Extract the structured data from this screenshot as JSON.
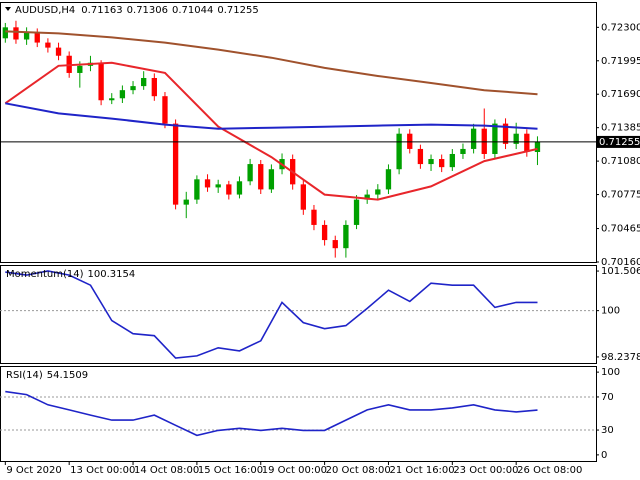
{
  "chart_data": [
    {
      "type": "candlestick",
      "title": "AUDUSD,H4",
      "open": [
        0.722,
        0.723,
        0.72189,
        0.72254,
        0.72161,
        0.72115,
        0.72041,
        0.71884,
        0.71949,
        0.71977,
        0.71635,
        0.71653,
        0.71727,
        0.71764,
        0.71838,
        0.71672,
        0.71422,
        0.70683,
        0.70729,
        0.70914,
        0.7084,
        0.70868,
        0.70775,
        0.70896,
        0.71053,
        0.70822,
        0.71006,
        0.71099,
        0.70868,
        0.70637,
        0.70498,
        0.7036,
        0.70286,
        0.70498,
        0.70729,
        0.70775,
        0.70822,
        0.71006,
        0.7133,
        0.71191,
        0.71053,
        0.71099,
        0.71025,
        0.71145,
        0.71191,
        0.71376,
        0.71145,
        0.71422,
        0.71237,
        0.7133,
        0.71163
      ],
      "high": [
        0.7234,
        0.7236,
        0.723,
        0.7229,
        0.722,
        0.7216,
        0.7208,
        0.7199,
        0.7204,
        0.72,
        0.717,
        0.7177,
        0.7181,
        0.719,
        0.7188,
        0.7171,
        0.7146,
        0.708,
        0.7095,
        0.7096,
        0.7091,
        0.709,
        0.7094,
        0.711,
        0.7109,
        0.7105,
        0.7115,
        0.7114,
        0.7091,
        0.7068,
        0.7054,
        0.704,
        0.7054,
        0.7077,
        0.7082,
        0.7087,
        0.7105,
        0.7138,
        0.7137,
        0.7123,
        0.7114,
        0.7114,
        0.7119,
        0.7124,
        0.7142,
        0.7156,
        0.7146,
        0.7147,
        0.7143,
        0.7137,
        0.71306
      ],
      "low": [
        0.7216,
        0.7215,
        0.7214,
        0.7212,
        0.7207,
        0.72,
        0.7184,
        0.7175,
        0.719,
        0.7159,
        0.716,
        0.7161,
        0.7169,
        0.7173,
        0.7163,
        0.7138,
        0.7064,
        0.7056,
        0.7069,
        0.708,
        0.7079,
        0.7073,
        0.7074,
        0.7086,
        0.7078,
        0.7079,
        0.7096,
        0.7082,
        0.7059,
        0.7045,
        0.7031,
        0.702,
        0.702,
        0.7046,
        0.7069,
        0.7073,
        0.7078,
        0.7096,
        0.7115,
        0.7101,
        0.7099,
        0.7098,
        0.7099,
        0.711,
        0.7115,
        0.711,
        0.711,
        0.7119,
        0.7119,
        0.7112,
        0.71044
      ],
      "close": [
        0.723,
        0.72189,
        0.72254,
        0.72161,
        0.72115,
        0.72041,
        0.71884,
        0.71949,
        0.71977,
        0.71635,
        0.71653,
        0.71727,
        0.71764,
        0.71838,
        0.71672,
        0.71422,
        0.70683,
        0.70729,
        0.70914,
        0.7084,
        0.70868,
        0.70775,
        0.70896,
        0.71053,
        0.70822,
        0.71006,
        0.71099,
        0.70868,
        0.70637,
        0.70498,
        0.7036,
        0.70286,
        0.70498,
        0.70729,
        0.70775,
        0.70822,
        0.71006,
        0.7133,
        0.71191,
        0.71053,
        0.71099,
        0.71025,
        0.71145,
        0.71191,
        0.71376,
        0.71145,
        0.71422,
        0.71237,
        0.7133,
        0.71163,
        0.71255
      ],
      "up_color": "#00a000",
      "down_color": "#ff0000",
      "series": [
        {
          "color": "#e8262b",
          "x": [
            0,
            5,
            10,
            15,
            20,
            25,
            30,
            35,
            40,
            45,
            50
          ],
          "values": [
            0.71607,
            0.71949,
            0.71977,
            0.71884,
            0.71395,
            0.71117,
            0.70775,
            0.70729,
            0.70849,
            0.7108,
            0.71191
          ]
        },
        {
          "color": "#1f24c8",
          "x": [
            0,
            5,
            10,
            15,
            20,
            25,
            30,
            35,
            40,
            45,
            50
          ],
          "values": [
            0.71607,
            0.71515,
            0.71468,
            0.71413,
            0.71376,
            0.71385,
            0.71394,
            0.71404,
            0.71413,
            0.71404,
            0.71376
          ]
        },
        {
          "color": "#a0522d",
          "x": [
            0,
            5,
            10,
            15,
            20,
            25,
            30,
            35,
            40,
            45,
            50
          ],
          "values": [
            0.72263,
            0.72245,
            0.72208,
            0.72161,
            0.72097,
            0.72023,
            0.7193,
            0.71856,
            0.71792,
            0.71727,
            0.7169
          ]
        }
      ],
      "xlim": [
        -0.5,
        55.5
      ],
      "ylim": [
        0.7016,
        0.72531
      ],
      "yticks": [
        {
          "value": 0.723,
          "label": "0.72300"
        },
        0.71995,
        {
          "value": 0.7169,
          "label": "0.71690"
        },
        0.71385,
        {
          "value": 0.7108,
          "label": "0.71080"
        },
        0.70775,
        0.70465,
        {
          "value": 0.7016,
          "label": "0.70160"
        }
      ]
    },
    {
      "type": "line",
      "title": "Momentum(14)",
      "color": "#1f24c8",
      "x": [
        0,
        2,
        4,
        6,
        8,
        10,
        12,
        14,
        16,
        18,
        20,
        22,
        24,
        26,
        28,
        30,
        32,
        34,
        36,
        38,
        40,
        42,
        44,
        46,
        48,
        50
      ],
      "values": [
        101.468,
        101.353,
        101.507,
        101.353,
        100.968,
        99.622,
        99.122,
        99.045,
        98.199,
        98.276,
        98.584,
        98.468,
        98.853,
        100.314,
        99.545,
        99.314,
        99.43,
        100.084,
        100.776,
        100.353,
        101.045,
        100.968,
        100.968,
        100.122,
        100.314,
        100.3154
      ],
      "levels": [
        100
      ],
      "xlim": [
        -0.5,
        55.5
      ],
      "ylim": [
        98.007,
        101.737
      ],
      "yticks": [
        101.5065,
        100,
        98.2378
      ]
    },
    {
      "type": "line",
      "title": "RSI(14)",
      "color": "#1f24c8",
      "x": [
        0,
        2,
        4,
        6,
        8,
        10,
        12,
        14,
        16,
        18,
        20,
        22,
        24,
        26,
        28,
        30,
        32,
        34,
        36,
        38,
        40,
        42,
        44,
        46,
        48,
        50
      ],
      "values": [
        76.5,
        72.8,
        60.5,
        54.3,
        48.1,
        42,
        42,
        48.1,
        35.8,
        23.5,
        29.6,
        32.1,
        29.6,
        32.1,
        29.6,
        29.6,
        42,
        54.3,
        60.5,
        54.3,
        54.3,
        56.8,
        60.5,
        54.3,
        51.9,
        54.1509
      ],
      "levels": [
        70,
        30
      ],
      "xlim": [
        -0.5,
        55.5
      ],
      "ylim": [
        -7.4,
        107.4
      ],
      "yticks": [
        100,
        70,
        30,
        0
      ],
      "xticks": [
        {
          "value": 0,
          "label": "9 Oct 2020"
        },
        {
          "value": 6,
          "label": "13 Oct 00:00"
        },
        {
          "value": 12,
          "label": "14 Oct 08:00"
        },
        {
          "value": 18,
          "label": "15 Oct 16:00"
        },
        {
          "value": 24,
          "label": "19 Oct 00:00"
        },
        {
          "value": 30,
          "label": "20 Oct 08:00"
        },
        {
          "value": 36,
          "label": "21 Oct 16:00"
        },
        {
          "value": 42,
          "label": "23 Oct 00:00"
        },
        {
          "value": 48,
          "label": "26 Oct 08:00"
        }
      ]
    }
  ]
}
